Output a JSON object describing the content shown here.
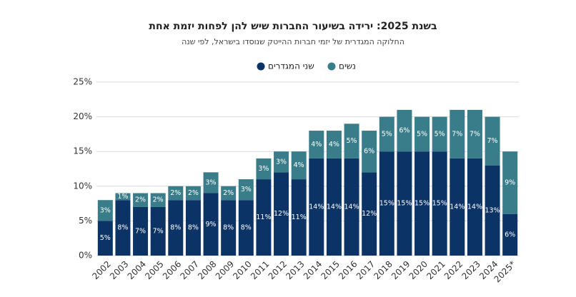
{
  "chart_data": {
    "type": "stacked-bar",
    "title": "בשנת 2025: ירידה בשיעור החברות שיש להן לפחות יזמת אחת",
    "subtitle": "החלוקה המגדרית של יזמי חברות ההייטק שנוסדו בישראל, לפי שנה",
    "categories": [
      "2002",
      "2003",
      "2004",
      "2005",
      "2006",
      "2007",
      "2008",
      "2009",
      "2010",
      "2011",
      "2012",
      "2013",
      "2014",
      "2015",
      "2016",
      "2017",
      "2018",
      "2019",
      "2020",
      "2021",
      "2022",
      "2023",
      "2024",
      "2025*"
    ],
    "series": [
      {
        "name": "שני המגדרים",
        "color": "#0b3366",
        "values": [
          5,
          8,
          7,
          7,
          8,
          8,
          9,
          8,
          8,
          11,
          12,
          11,
          14,
          14,
          14,
          12,
          15,
          15,
          15,
          15,
          14,
          14,
          13,
          6
        ],
        "value_labels": [
          "5%",
          "8%",
          "7%",
          "7%",
          "8%",
          "8%",
          "9%",
          "8%",
          "8%",
          "11%",
          "12%",
          "11%",
          "14%",
          "14%",
          "14%",
          "12%",
          "15%",
          "15%",
          "15%",
          "15%",
          "14%",
          "14%",
          "13%",
          "6%"
        ]
      },
      {
        "name": "נשים",
        "color": "#3a7d8a",
        "values": [
          3,
          1,
          2,
          2,
          2,
          2,
          3,
          2,
          3,
          3,
          3,
          4,
          4,
          4,
          5,
          6,
          5,
          6,
          5,
          5,
          7,
          7,
          7,
          9
        ],
        "value_labels": [
          "3%",
          "1%",
          "2%",
          "2%",
          "2%",
          "2%",
          "3%",
          "2%",
          "3%",
          "3%",
          "3%",
          "4%",
          "4%",
          "4%",
          "5%",
          "6%",
          "5%",
          "6%",
          "5%",
          "5%",
          "7%",
          "7%",
          "7%",
          "9%"
        ]
      }
    ],
    "ylim": [
      0,
      25
    ],
    "yticks": [
      {
        "value": 0,
        "label": "0%"
      },
      {
        "value": 5,
        "label": "5%"
      },
      {
        "value": 10,
        "label": "10%"
      },
      {
        "value": 15,
        "label": "15%"
      },
      {
        "value": 20,
        "label": "20%"
      },
      {
        "value": 25,
        "label": "25%"
      }
    ],
    "grid": true
  }
}
